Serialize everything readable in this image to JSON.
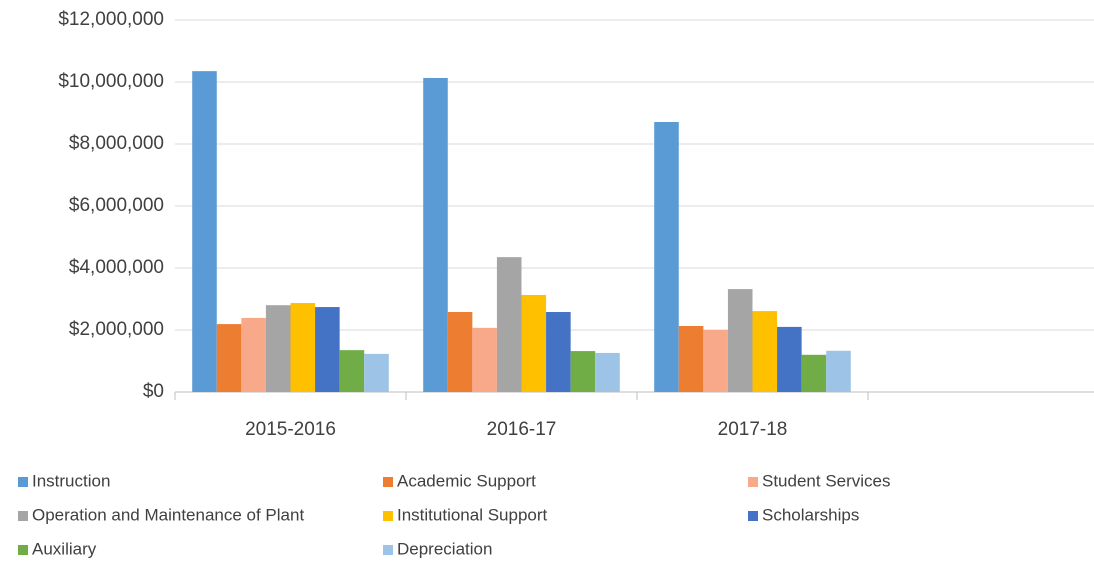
{
  "chart_data": {
    "type": "bar",
    "categories": [
      "2015-2016",
      "2016-17",
      "2017-18",
      null
    ],
    "series": [
      {
        "name": "Instruction",
        "color": "#5b9bd5",
        "values": [
          10350000,
          10130000,
          8710000,
          null
        ]
      },
      {
        "name": "Academic Support",
        "color": "#ed7d31",
        "values": [
          2190000,
          2580000,
          2130000,
          null
        ]
      },
      {
        "name": "Student Services",
        "color": "#f8a98a",
        "values": [
          2390000,
          2070000,
          2000000,
          null
        ]
      },
      {
        "name": "Operation and Maintenance of Plant",
        "color": "#a5a5a5",
        "values": [
          2800000,
          4350000,
          3320000,
          null
        ]
      },
      {
        "name": "Institutional Support",
        "color": "#ffc000",
        "values": [
          2870000,
          3130000,
          2610000,
          null
        ]
      },
      {
        "name": "Scholarships",
        "color": "#4472c4",
        "values": [
          2740000,
          2580000,
          2100000,
          null
        ]
      },
      {
        "name": "Auxiliary",
        "color": "#70ad47",
        "values": [
          1350000,
          1320000,
          1200000,
          null
        ]
      },
      {
        "name": "Depreciation",
        "color": "#9dc3e6",
        "values": [
          1230000,
          1260000,
          1330000,
          null
        ]
      }
    ],
    "ylim": [
      0,
      12000000
    ],
    "yticks": [
      {
        "value": 0,
        "label": "$0"
      },
      {
        "value": 2000000,
        "label": "$2,000,000"
      },
      {
        "value": 4000000,
        "label": "$4,000,000"
      },
      {
        "value": 6000000,
        "label": "$6,000,000"
      },
      {
        "value": 8000000,
        "label": "$8,000,000"
      },
      {
        "value": 10000000,
        "label": "$10,000,000"
      },
      {
        "value": 12000000,
        "label": "$12,000,000"
      }
    ],
    "grid": true,
    "legend": "bottom"
  }
}
